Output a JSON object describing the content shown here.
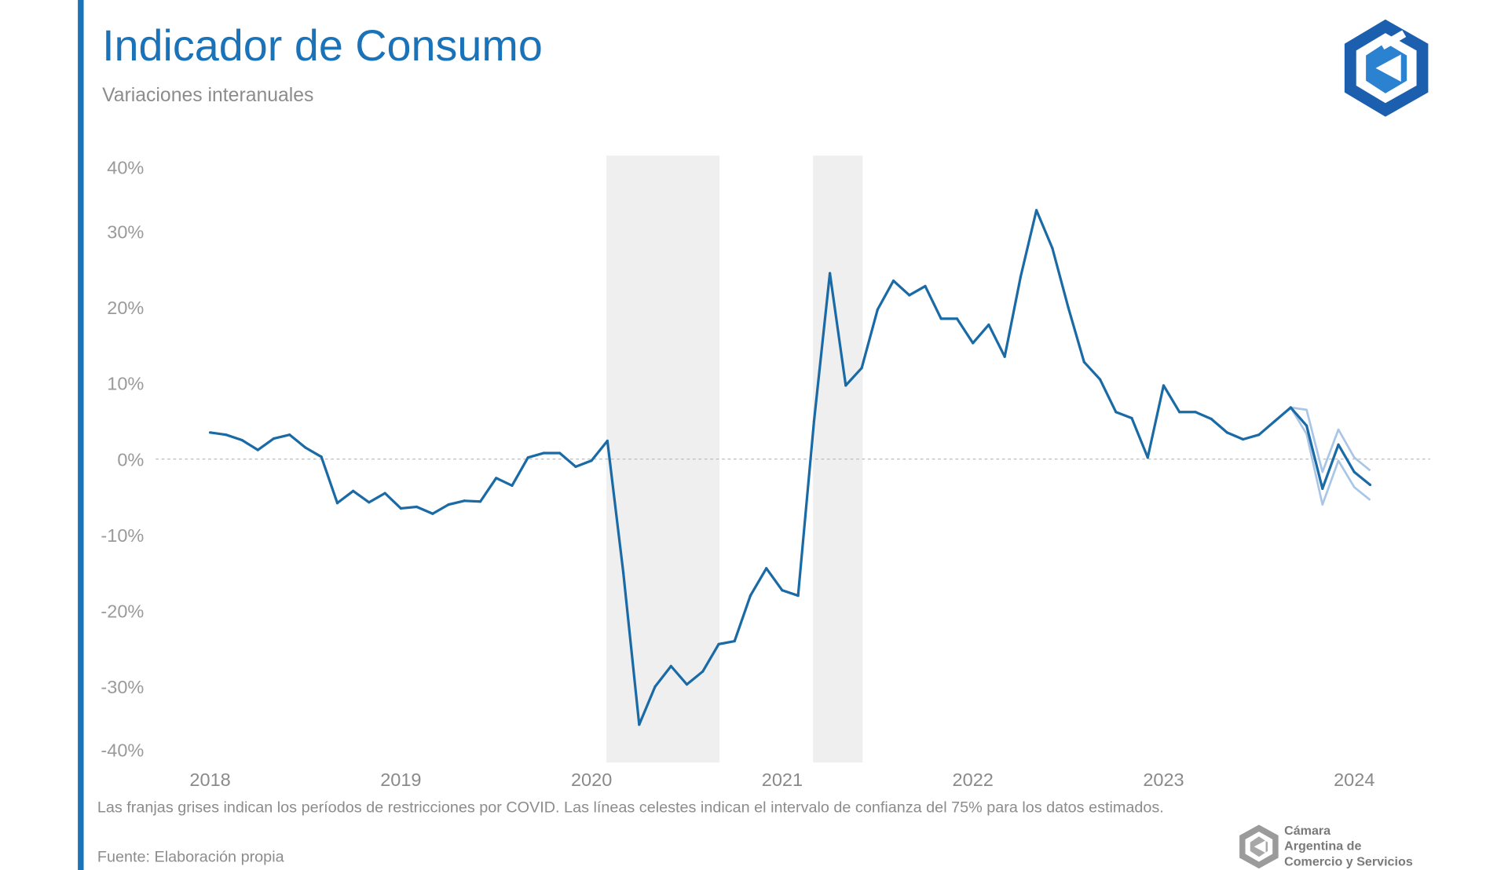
{
  "chart_data": {
    "type": "line",
    "title": "Indicador de Consumo",
    "subtitle": "Variaciones interanuales",
    "ylim": [
      -40,
      40
    ],
    "y_ticks": [
      40,
      30,
      20,
      10,
      0,
      -10,
      -20,
      -30,
      -40
    ],
    "y_tick_labels": [
      "40%",
      "30%",
      "20%",
      "10%",
      "0%",
      "-10%",
      "-20%",
      "-30%",
      "-40%"
    ],
    "x_tick_labels": [
      "2018",
      "2019",
      "2020",
      "2021",
      "2022",
      "2023",
      "2024"
    ],
    "zero_line": "dotted",
    "grid": false,
    "frequency": "monthly",
    "start": "2018-01",
    "values": [
      3.5,
      3.2,
      2.5,
      1.2,
      2.7,
      3.2,
      1.5,
      0.3,
      -5.8,
      -4.2,
      -5.7,
      -4.5,
      -6.5,
      -6.3,
      -7.2,
      -6.0,
      -5.5,
      -5.6,
      -2.5,
      -3.5,
      0.2,
      0.8,
      0.8,
      -1.0,
      -0.2,
      2.4,
      -15.0,
      -35.0,
      -30.0,
      -27.3,
      -29.7,
      -28.0,
      -24.4,
      -24.0,
      -18.0,
      -14.4,
      -17.3,
      -18.0,
      5.0,
      24.5,
      9.7,
      12.0,
      19.7,
      23.5,
      21.6,
      22.8,
      18.5,
      18.5,
      15.3,
      17.7,
      13.5,
      24.0,
      32.8,
      27.8,
      20.0,
      12.8,
      10.5,
      6.2,
      5.4,
      0.2,
      9.7,
      6.2,
      6.2,
      5.3,
      3.5,
      2.6,
      3.2,
      5.0,
      6.8,
      4.4,
      -3.9,
      1.9,
      -1.7,
      -3.4
    ],
    "confidence_interval": {
      "level": "75%",
      "start": "2023-09",
      "upper": [
        6.8,
        6.5,
        -1.7,
        3.9,
        0.2,
        -1.5
      ],
      "lower": [
        6.8,
        3.3,
        -6.0,
        -0.2,
        -3.7,
        -5.4
      ]
    },
    "shaded_periods": [
      {
        "from": "2020-02",
        "to": "2020-09"
      },
      {
        "from": "2021-03",
        "to": "2021-06"
      }
    ],
    "note": "Las franjas grises indican los períodos de restricciones por COVID. Las líneas celestes indican el intervalo de confianza del 75% para los datos estimados.",
    "source": "Fuente: Elaboración propia"
  },
  "branding": {
    "org_name_lines": [
      "Cámara",
      "Argentina de",
      "Comercio y Servicios"
    ],
    "logo_icon": "cac-hexagon-logo"
  },
  "colors": {
    "accent": "#1a72b8",
    "line": "#1a6aa6",
    "confidence": "#a9c6e6",
    "shade": "#efefef",
    "text_muted": "#8c8c8c"
  }
}
